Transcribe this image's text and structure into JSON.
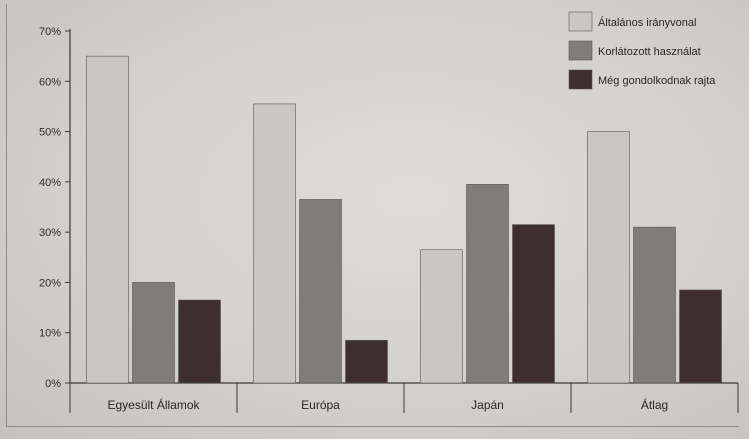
{
  "chart_data": {
    "type": "bar",
    "categories": [
      "Egyesült Államok",
      "Európa",
      "Japán",
      "Átlag"
    ],
    "series": [
      {
        "name": "Általános irányvonal",
        "color": "#c9c7c2",
        "values": [
          65,
          55.5,
          26.5,
          50
        ]
      },
      {
        "name": "Korlátozott használat",
        "color": "#807c78",
        "values": [
          20,
          36.5,
          39.5,
          31
        ]
      },
      {
        "name": "Még gondolkodnak rajta",
        "color": "#3e2e30",
        "values": [
          16.5,
          8.5,
          31.5,
          18.5
        ]
      }
    ],
    "yticks": [
      "0%",
      "10%",
      "20%",
      "30%",
      "40%",
      "50%",
      "60%",
      "70%"
    ],
    "ylim": [
      0,
      70
    ],
    "title": "",
    "xlabel": "",
    "ylabel": "",
    "legend_position": "top-right",
    "grid": false
  }
}
